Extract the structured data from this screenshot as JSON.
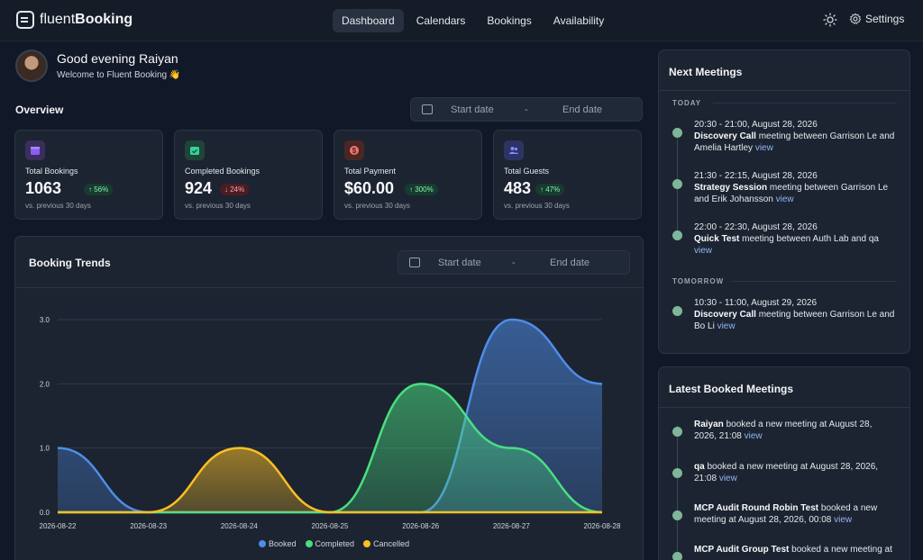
{
  "app": {
    "logo_prefix": "fluent",
    "logo_suffix": "Booking"
  },
  "nav": {
    "items": [
      "Dashboard",
      "Calendars",
      "Bookings",
      "Availability"
    ],
    "active": "Dashboard"
  },
  "header": {
    "settings_label": "Settings"
  },
  "greeting": {
    "title": "Good evening Raiyan",
    "subtitle": "Welcome to Fluent Booking 👋"
  },
  "overview": {
    "title": "Overview",
    "start_placeholder": "Start date",
    "end_placeholder": "End date",
    "separator": "-"
  },
  "stats": [
    {
      "label": "Total Bookings",
      "value": "1063",
      "change": "↑ 56%",
      "trend": "up",
      "foot": "vs. previous 30 days",
      "icon": "calendar-icon",
      "icon_color": "#8b5cf6"
    },
    {
      "label": "Completed Bookings",
      "value": "924",
      "change": "↓ 24%",
      "trend": "down",
      "foot": "vs. previous 30 days",
      "icon": "calendar-check-icon",
      "icon_color": "#34d399"
    },
    {
      "label": "Total Payment",
      "value": "$60.00",
      "change": "↑ 300%",
      "trend": "up",
      "foot": "vs. previous 30 days",
      "icon": "dollar-icon",
      "icon_color": "#f87171"
    },
    {
      "label": "Total Guests",
      "value": "483",
      "change": "↑ 47%",
      "trend": "up",
      "foot": "vs. previous 30 days",
      "icon": "users-icon",
      "icon_color": "#818cf8"
    }
  ],
  "trends": {
    "title": "Booking Trends",
    "start_placeholder": "Start date",
    "end_placeholder": "End date",
    "separator": "-"
  },
  "chart_data": {
    "type": "area",
    "categories": [
      "2026-08-22",
      "2026-08-23",
      "2026-08-24",
      "2026-08-25",
      "2026-08-26",
      "2026-08-27",
      "2026-08-28"
    ],
    "series": [
      {
        "name": "Booked",
        "values": [
          1,
          0,
          0,
          0,
          0,
          3,
          2
        ],
        "color": "#4f8de8"
      },
      {
        "name": "Completed",
        "values": [
          0,
          0,
          0,
          0,
          2,
          1,
          0
        ],
        "color": "#4ade80"
      },
      {
        "name": "Cancelled",
        "values": [
          0,
          0,
          1,
          0,
          0,
          0,
          0
        ],
        "color": "#fbbf24"
      }
    ],
    "yticks": [
      "0.0",
      "1.0",
      "2.0",
      "3.0"
    ],
    "ylim": [
      0,
      3
    ],
    "grid": true,
    "legend": "bottom"
  },
  "next_meetings": {
    "title": "Next Meetings",
    "days": [
      {
        "label": "TODAY",
        "meetings": [
          {
            "time": "20:30 - 21:00, August 28, 2026",
            "name": "Discovery Call",
            "text": " meeting between Garrison Le and Amelia Hartley ",
            "link": "view"
          },
          {
            "time": "21:30 - 22:15, August 28, 2026",
            "name": "Strategy Session",
            "text": " meeting between Garrison Le and Erik Johansson ",
            "link": "view"
          },
          {
            "time": "22:00 - 22:30, August 28, 2026",
            "name": "Quick Test",
            "text": " meeting between Auth Lab and qa ",
            "link": "view"
          }
        ]
      },
      {
        "label": "TOMORROW",
        "meetings": [
          {
            "time": "10:30 - 11:00, August 29, 2026",
            "name": "Discovery Call",
            "text": " meeting between Garrison Le and Bo Li ",
            "link": "view"
          }
        ]
      }
    ]
  },
  "latest": {
    "title": "Latest Booked Meetings",
    "items": [
      {
        "name": "Raiyan",
        "text": " booked a new meeting at August 28, 2026, 21:08 ",
        "link": "view"
      },
      {
        "name": "qa",
        "text": " booked a new meeting at August 28, 2026, 21:08 ",
        "link": "view"
      },
      {
        "name": "MCP Audit Round Robin Test",
        "text": " booked a new meeting at August 28, 2026, 00:08 ",
        "link": "view"
      },
      {
        "name": "MCP Audit Group Test",
        "text": " booked a new meeting at",
        "link": ""
      }
    ]
  }
}
